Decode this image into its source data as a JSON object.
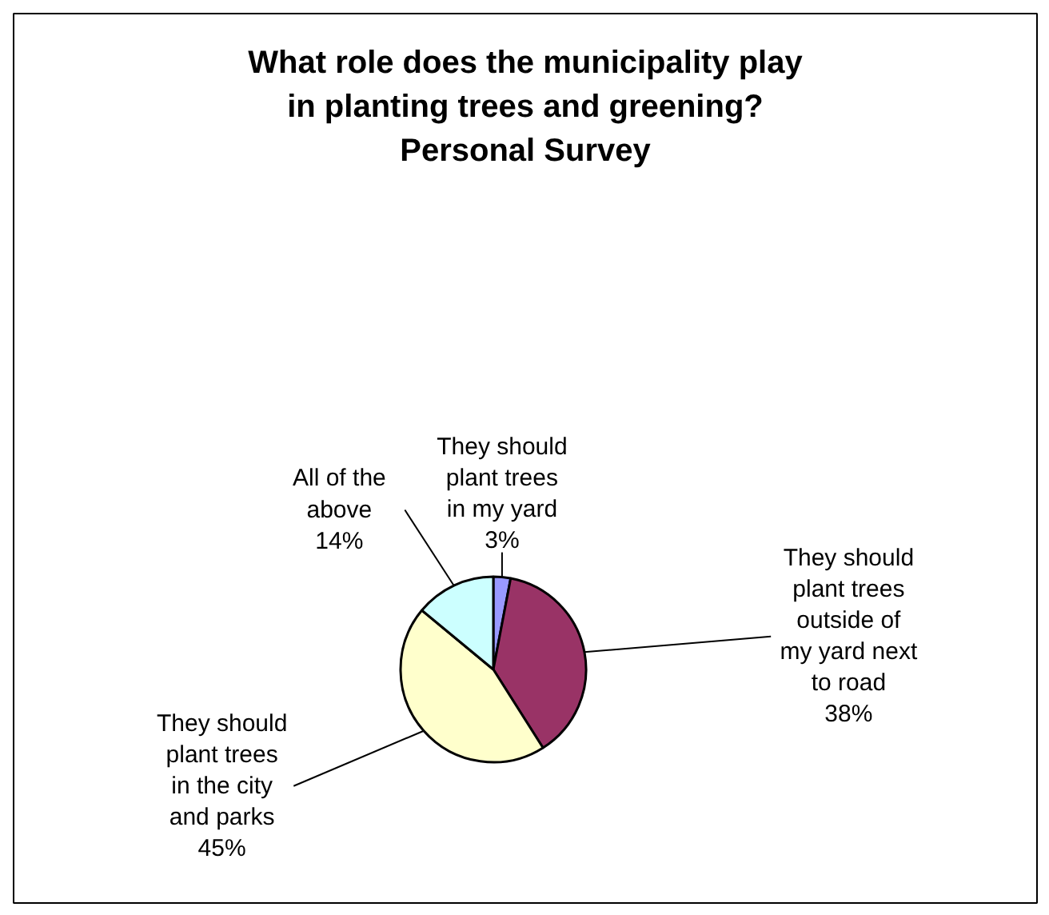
{
  "chart_data": {
    "type": "pie",
    "title": "What role does the municipality play in planting trees and greening? Personal Survey",
    "categories": [
      "They should plant trees in my yard",
      "They should plant trees outside of my yard next to road",
      "They should plant trees in the city and parks",
      "All of the above"
    ],
    "values": [
      3,
      38,
      45,
      14
    ],
    "colors": [
      "#9999ff",
      "#993366",
      "#ffffcc",
      "#ccffff"
    ],
    "value_labels": [
      "3%",
      "38%",
      "45%",
      "14%"
    ]
  }
}
